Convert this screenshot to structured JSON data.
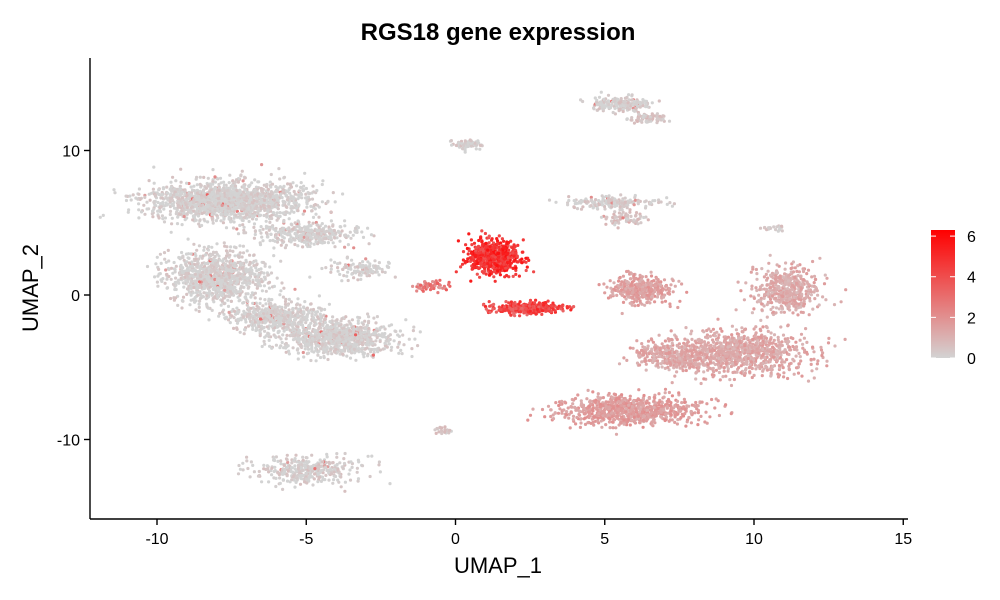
{
  "chart_data": {
    "type": "scatter",
    "title": "RGS18 gene expression",
    "xlabel": "UMAP_1",
    "ylabel": "UMAP_2",
    "xlim": [
      -12.3,
      15.3
    ],
    "ylim": [
      -15.5,
      16.5
    ],
    "x_ticks": [
      -10,
      -5,
      0,
      5,
      10,
      15
    ],
    "y_ticks": [
      -10,
      0,
      10
    ],
    "x_tick_labels": [
      "-10",
      "-5",
      "0",
      "5",
      "10",
      "15"
    ],
    "y_tick_labels": [
      "-10",
      "0",
      "10"
    ],
    "grid": false,
    "legend": {
      "placement": "right",
      "type": "colorbar",
      "range": [
        0,
        6.3
      ],
      "ticks": [
        0,
        2,
        4,
        6
      ],
      "tick_labels": [
        "0",
        "2",
        "4",
        "6"
      ],
      "low_color": "#d3d3d3",
      "high_color": "#ff0000"
    },
    "colors": {
      "low": "#d3d3d3",
      "high": "#ff0000"
    },
    "clusters": [
      {
        "id": "c1",
        "center": [
          -7.6,
          6.5
        ],
        "spread": [
          2.3,
          1.2
        ],
        "n": 1600,
        "expression": 0.05
      },
      {
        "id": "c2",
        "center": [
          -8.0,
          1.2
        ],
        "spread": [
          1.4,
          1.6
        ],
        "n": 1000,
        "expression": 0.05
      },
      {
        "id": "c3",
        "center": [
          -5.0,
          4.2
        ],
        "spread": [
          1.6,
          0.7
        ],
        "n": 350,
        "expression": 0.05
      },
      {
        "id": "c4",
        "center": [
          -4.0,
          -3.0
        ],
        "spread": [
          1.7,
          1.1
        ],
        "n": 900,
        "expression": 0.05
      },
      {
        "id": "c5",
        "center": [
          -6.0,
          -1.5
        ],
        "spread": [
          1.3,
          0.9
        ],
        "n": 500,
        "expression": 0.05
      },
      {
        "id": "c6",
        "center": [
          -3.2,
          1.8
        ],
        "spread": [
          0.9,
          0.6
        ],
        "n": 120,
        "expression": 0.05
      },
      {
        "id": "c7",
        "center": [
          1.3,
          2.6
        ],
        "spread": [
          0.75,
          1.05
        ],
        "n": 700,
        "expression": 4.8
      },
      {
        "id": "c8",
        "center": [
          2.4,
          -0.9
        ],
        "spread": [
          1.1,
          0.35
        ],
        "n": 350,
        "expression": 4.2
      },
      {
        "id": "c9",
        "center": [
          -0.8,
          0.6
        ],
        "spread": [
          0.6,
          0.35
        ],
        "n": 60,
        "expression": 2.5
      },
      {
        "id": "c10",
        "center": [
          5.5,
          13.2
        ],
        "spread": [
          0.9,
          0.5
        ],
        "n": 200,
        "expression": 0.15
      },
      {
        "id": "c11",
        "center": [
          6.4,
          12.2
        ],
        "spread": [
          0.5,
          0.3
        ],
        "n": 80,
        "expression": 0.4
      },
      {
        "id": "c12",
        "center": [
          0.4,
          10.4
        ],
        "spread": [
          0.4,
          0.28
        ],
        "n": 70,
        "expression": 0.1
      },
      {
        "id": "c13",
        "center": [
          5.3,
          6.4
        ],
        "spread": [
          1.3,
          0.35
        ],
        "n": 200,
        "expression": 0.15
      },
      {
        "id": "c14",
        "center": [
          5.7,
          5.3
        ],
        "spread": [
          0.6,
          0.45
        ],
        "n": 70,
        "expression": 0.4
      },
      {
        "id": "c15",
        "center": [
          6.2,
          0.4
        ],
        "spread": [
          1.0,
          0.9
        ],
        "n": 350,
        "expression": 1.5
      },
      {
        "id": "c16",
        "center": [
          9.6,
          -4.0
        ],
        "spread": [
          1.9,
          1.4
        ],
        "n": 900,
        "expression": 1.3
      },
      {
        "id": "c17",
        "center": [
          5.8,
          -8.0
        ],
        "spread": [
          2.2,
          0.9
        ],
        "n": 800,
        "expression": 1.6
      },
      {
        "id": "c18",
        "center": [
          11.1,
          0.3
        ],
        "spread": [
          1.0,
          1.4
        ],
        "n": 450,
        "expression": 1.2
      },
      {
        "id": "c19",
        "center": [
          7.3,
          -4.2
        ],
        "spread": [
          1.2,
          0.9
        ],
        "n": 350,
        "expression": 1.3
      },
      {
        "id": "c20",
        "center": [
          -5.0,
          -12.2
        ],
        "spread": [
          1.6,
          0.9
        ],
        "n": 350,
        "expression": 0.1
      },
      {
        "id": "c21",
        "center": [
          -0.4,
          -9.4
        ],
        "spread": [
          0.25,
          0.2
        ],
        "n": 25,
        "expression": 0.3
      },
      {
        "id": "c22",
        "center": [
          10.7,
          4.6
        ],
        "spread": [
          0.4,
          0.15
        ],
        "n": 20,
        "expression": 0.3
      }
    ]
  }
}
